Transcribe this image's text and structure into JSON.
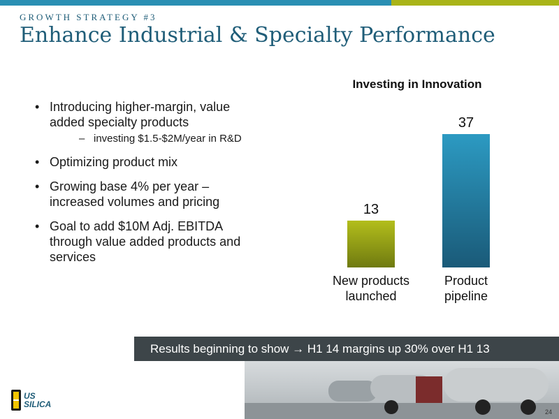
{
  "header": {
    "kicker": "GROWTH STRATEGY #3",
    "title": "Enhance Industrial & Specialty Performance"
  },
  "bullets": [
    {
      "text": "Introducing higher-margin, value added specialty products",
      "sub": "investing $1.5-$2M/year in R&D"
    },
    {
      "text": "Optimizing product mix"
    },
    {
      "text": "Growing base 4% per year – increased volumes and pricing"
    },
    {
      "text": "Goal to add $10M Adj. EBITDA through value added products and services"
    }
  ],
  "bullet_symbol": "•",
  "sub_symbol": "–",
  "chart_data": {
    "type": "bar",
    "title": "Investing in Innovation",
    "categories": [
      "New products launched",
      "Product pipeline"
    ],
    "values": [
      13,
      37
    ],
    "bar_colors": [
      "#a7b217",
      "#2a8fb3"
    ],
    "ylim": [
      0,
      37
    ],
    "grid": false
  },
  "results_bar": {
    "text": "Results beginning to show → H1 14 margins up 30% over H1 13"
  },
  "logo": {
    "line1": "US",
    "line2": "SILICA"
  },
  "page_number": "24",
  "colors": {
    "title": "#1f5d78",
    "top_bar_blue": "#2a8fb3",
    "top_bar_green": "#a9b418",
    "results_bg": "#3d4549"
  }
}
